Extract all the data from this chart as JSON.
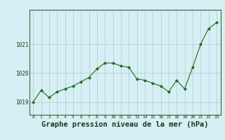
{
  "x": [
    0,
    1,
    2,
    3,
    4,
    5,
    6,
    7,
    8,
    9,
    10,
    11,
    12,
    13,
    14,
    15,
    16,
    17,
    18,
    19,
    20,
    21,
    22,
    23
  ],
  "y": [
    1019.0,
    1019.4,
    1019.15,
    1019.35,
    1019.45,
    1019.55,
    1019.7,
    1019.85,
    1020.15,
    1020.35,
    1020.35,
    1020.25,
    1020.2,
    1019.8,
    1019.75,
    1019.65,
    1019.55,
    1019.35,
    1019.75,
    1019.45,
    1020.2,
    1021.0,
    1021.55,
    1021.75
  ],
  "line_color": "#1a6b1a",
  "marker": "D",
  "markersize": 2.2,
  "bg_color": "#d6eff5",
  "plot_bg_color": "#d6eff5",
  "grid_color": "#b0cccc",
  "title": "Graphe pression niveau de la mer (hPa)",
  "title_fontsize": 7.5,
  "title_bold": true,
  "xtick_labels": [
    "0",
    "1",
    "2",
    "3",
    "4",
    "5",
    "6",
    "7",
    "8",
    "9",
    "10",
    "11",
    "12",
    "13",
    "14",
    "15",
    "16",
    "17",
    "18",
    "19",
    "20",
    "21",
    "22",
    "23"
  ],
  "ytick_values": [
    1019,
    1020,
    1021
  ],
  "ylim": [
    1018.55,
    1022.2
  ],
  "xlim": [
    -0.5,
    23.5
  ]
}
